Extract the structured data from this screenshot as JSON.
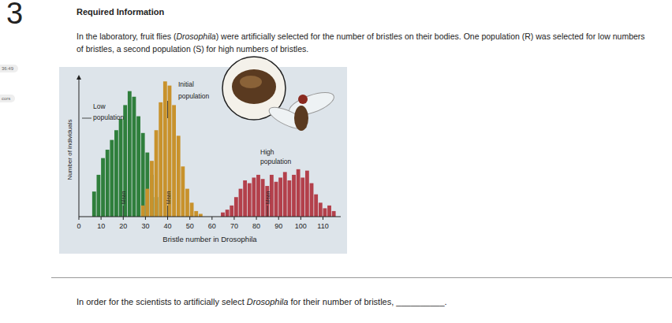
{
  "question_number": "3",
  "header": "Required Information",
  "side_labels": [
    "36:49",
    "cors"
  ],
  "paragraph": [
    {
      "text": "In the laboratory, fruit flies ("
    },
    {
      "text": "Drosophila",
      "italic": true
    },
    {
      "text": ") were artificially selected for the number of bristles on their bodies. One population (R) was selected for low numbers of bristles, a second population (S) for high numbers of bristles."
    }
  ],
  "chart_data": {
    "type": "histogram",
    "x_label": "Bristle number in Drosophila",
    "y_label": "Number of individuals",
    "mean_label": "Mean",
    "xlim": [
      0,
      118
    ],
    "xticks": [
      0,
      10,
      20,
      30,
      40,
      50,
      60,
      70,
      80,
      90,
      100,
      110
    ],
    "ylim": [
      0,
      100
    ],
    "yticks": [],
    "tick_labels": "x",
    "series": [
      {
        "name": "Low population",
        "color": "#2f7f3c",
        "mean": 20,
        "bins": [
          6,
          8,
          10,
          12,
          14,
          16,
          18,
          20,
          22,
          24,
          26,
          28,
          30,
          32,
          34,
          36
        ],
        "values": [
          18,
          30,
          42,
          48,
          55,
          62,
          70,
          80,
          90,
          86,
          72,
          60,
          46,
          30,
          14
        ]
      },
      {
        "name": "Initial population",
        "color": "#c8922c",
        "mean": 40,
        "bins": [
          28,
          30,
          32,
          34,
          36,
          38,
          40,
          42,
          44,
          46,
          48,
          50,
          52,
          54,
          56
        ],
        "values": [
          8,
          20,
          40,
          62,
          82,
          97,
          94,
          80,
          58,
          36,
          20,
          10,
          4,
          2
        ]
      },
      {
        "name": "High population",
        "color": "#b3404b",
        "mean": 85,
        "bins": [
          64,
          66,
          68,
          70,
          72,
          74,
          76,
          78,
          80,
          82,
          84,
          86,
          88,
          90,
          92,
          94,
          96,
          98,
          100,
          102,
          104,
          106,
          108,
          110,
          112,
          114,
          116
        ],
        "values": [
          3,
          5,
          8,
          14,
          20,
          26,
          24,
          28,
          30,
          27,
          22,
          30,
          25,
          28,
          32,
          26,
          30,
          34,
          28,
          33,
          24,
          16,
          10,
          6,
          8,
          4
        ]
      }
    ]
  },
  "question": [
    {
      "text": "In order for the scientists to artificially select "
    },
    {
      "text": "Drosophila",
      "italic": true
    },
    {
      "text": " for their number of bristles, "
    },
    {
      "text": "__________."
    }
  ]
}
